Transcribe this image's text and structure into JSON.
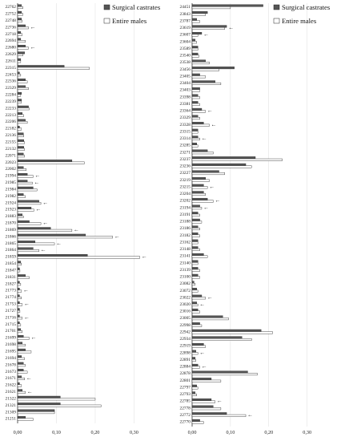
{
  "chart_data": [
    {
      "type": "bar",
      "orientation": "horizontal",
      "categories": [
        "22762",
        "22752",
        "22748",
        "22736",
        "22718",
        "22694",
        "22680",
        "22629",
        "22611",
        "22315",
        "22453",
        "22336",
        "22329",
        "22284",
        "22239",
        "22233",
        "22213",
        "22206",
        "22182",
        "22136",
        "22155",
        "22132",
        "22071",
        "22023",
        "22002",
        "21994",
        "21985",
        "21984",
        "21982",
        "21924",
        "21923",
        "21883",
        "21870",
        "21869",
        "21866",
        "21865",
        "21864",
        "21859",
        "21854",
        "21847",
        "21831",
        "21827",
        "21773",
        "21774",
        "21753",
        "21727",
        "21716",
        "21715",
        "21701",
        "21699",
        "21698",
        "21695",
        "21694",
        "21678",
        "21673",
        "21671",
        "21622",
        "21621",
        "21322",
        "21321",
        "21309",
        "21251"
      ],
      "series": [
        {
          "name": "Surgical castrates",
          "values": [
            0.01,
            0.01,
            0.01,
            0.02,
            0.008,
            0.008,
            0.02,
            0.018,
            0.008,
            0.12,
            0.005,
            0.02,
            0.02,
            0.01,
            0.01,
            0.028,
            0.012,
            0.02,
            0.005,
            0.015,
            0.016,
            0.016,
            0.015,
            0.14,
            0.015,
            0.025,
            0.025,
            0.04,
            0.015,
            0.055,
            0.035,
            0.012,
            0.03,
            0.085,
            0.175,
            0.045,
            0.04,
            0.18,
            0.008,
            0.005,
            0.02,
            0.005,
            0.005,
            0.005,
            0.005,
            0.005,
            0.005,
            0.005,
            0.008,
            0.015,
            0.012,
            0.02,
            0.01,
            0.015,
            0.015,
            0.01,
            0.005,
            0.012,
            0.11,
            0.11,
            0.095,
            0.02
          ]
        },
        {
          "name": "Entire males",
          "values": [
            0.014,
            0.014,
            0.012,
            0.028,
            0.012,
            0.02,
            0.028,
            0.014,
            0.008,
            0.185,
            0.008,
            0.025,
            0.028,
            0.008,
            0.01,
            0.03,
            0.016,
            0.025,
            0.01,
            0.016,
            0.018,
            0.018,
            0.018,
            0.172,
            0.022,
            0.04,
            0.038,
            0.05,
            0.02,
            0.06,
            0.042,
            0.015,
            0.06,
            0.14,
            0.245,
            0.095,
            0.055,
            0.315,
            0.01,
            0.006,
            0.03,
            0.008,
            0.01,
            0.01,
            0.012,
            0.006,
            0.012,
            0.008,
            0.012,
            0.03,
            0.02,
            0.035,
            0.018,
            0.02,
            0.025,
            0.018,
            0.01,
            0.02,
            0.2,
            0.215,
            0.095,
            0.04
          ]
        }
      ],
      "arrows": [
        false,
        false,
        false,
        true,
        false,
        false,
        true,
        false,
        false,
        false,
        false,
        false,
        false,
        false,
        false,
        false,
        false,
        false,
        false,
        false,
        false,
        false,
        false,
        false,
        false,
        true,
        true,
        false,
        false,
        true,
        true,
        false,
        true,
        true,
        true,
        true,
        true,
        true,
        false,
        false,
        false,
        false,
        true,
        false,
        true,
        false,
        true,
        false,
        false,
        true,
        false,
        false,
        false,
        false,
        false,
        true,
        false,
        true,
        false,
        false,
        false,
        false
      ],
      "xlim": [
        0,
        0.33
      ],
      "xticks": [
        "0,00",
        "0,10",
        "0,20",
        "0,30"
      ],
      "legend": [
        "Surgical castrates",
        "Entire males"
      ],
      "legend_position": "top-right"
    },
    {
      "type": "bar",
      "orientation": "horizontal",
      "categories": [
        "24451",
        "23843",
        "23787",
        "23619",
        "23607",
        "23604",
        "23589",
        "23540",
        "23538",
        "23456",
        "23405",
        "23404",
        "23403",
        "23398",
        "23381",
        "23364",
        "23329",
        "23328",
        "23315",
        "23314",
        "23285",
        "23271",
        "23237",
        "23236",
        "23227",
        "23219",
        "23215",
        "23204",
        "23202",
        "23194",
        "23191",
        "23188",
        "23186",
        "23182",
        "23162",
        "23148",
        "23141",
        "23140",
        "23139",
        "23100",
        "23082",
        "23072",
        "23022",
        "23020",
        "23016",
        "23005",
        "22998",
        "22942",
        "22934",
        "22919",
        "22898",
        "22891",
        "22884",
        "22878",
        "22801",
        "22797",
        "22793",
        "22785",
        "22778",
        "22772",
        "22770"
      ],
      "series": [
        {
          "name": "Surgical castrates",
          "values": [
            0.185,
            0.04,
            0.012,
            0.09,
            0.025,
            0.008,
            0.015,
            0.015,
            0.035,
            0.11,
            0.02,
            0.06,
            0.02,
            0.015,
            0.015,
            0.025,
            0.015,
            0.03,
            0.015,
            0.015,
            0.012,
            0.04,
            0.165,
            0.14,
            0.07,
            0.035,
            0.03,
            0.03,
            0.04,
            0.02,
            0.015,
            0.02,
            0.015,
            0.015,
            0.015,
            0.015,
            0.03,
            0.015,
            0.015,
            0.015,
            0.005,
            0.012,
            0.025,
            0.012,
            0.015,
            0.08,
            0.02,
            0.18,
            0.13,
            0.03,
            0.01,
            0.008,
            0.015,
            0.145,
            0.05,
            0.012,
            0.008,
            0.05,
            0.055,
            0.09,
            0.02
          ]
        },
        {
          "name": "Entire males",
          "values": [
            0.1,
            0.035,
            0.02,
            0.085,
            0.015,
            0.012,
            0.015,
            0.018,
            0.045,
            0.07,
            0.035,
            0.075,
            0.02,
            0.02,
            0.02,
            0.035,
            0.02,
            0.045,
            0.015,
            0.02,
            0.015,
            0.055,
            0.235,
            0.155,
            0.085,
            0.045,
            0.04,
            0.035,
            0.055,
            0.025,
            0.02,
            0.025,
            0.02,
            0.02,
            0.015,
            0.02,
            0.04,
            0.015,
            0.02,
            0.02,
            0.008,
            0.015,
            0.035,
            0.015,
            0.02,
            0.095,
            0.025,
            0.21,
            0.155,
            0.035,
            0.015,
            0.01,
            0.02,
            0.17,
            0.075,
            0.015,
            0.012,
            0.06,
            0.075,
            0.14,
            0.03
          ]
        }
      ],
      "arrows": [
        false,
        false,
        false,
        true,
        true,
        false,
        false,
        false,
        false,
        false,
        false,
        false,
        false,
        false,
        false,
        true,
        false,
        true,
        false,
        true,
        false,
        false,
        false,
        false,
        false,
        false,
        true,
        false,
        true,
        true,
        false,
        false,
        false,
        false,
        false,
        false,
        false,
        false,
        false,
        false,
        false,
        false,
        true,
        true,
        false,
        false,
        false,
        false,
        false,
        false,
        true,
        false,
        true,
        false,
        false,
        false,
        false,
        true,
        false,
        true,
        false
      ],
      "xlim": [
        0,
        0.33
      ],
      "xticks": [
        "0,00",
        "0,10",
        "0,20",
        "0,30"
      ],
      "legend": [
        "Surgical castrates",
        "Entire males"
      ],
      "legend_position": "top-right"
    }
  ],
  "colors": {
    "surgical_fill": "#555555",
    "entire_fill": "#ffffff",
    "bar_stroke": "#222222",
    "axis": "#333333",
    "grid": "#dddddd"
  },
  "arrow_glyph": "←"
}
